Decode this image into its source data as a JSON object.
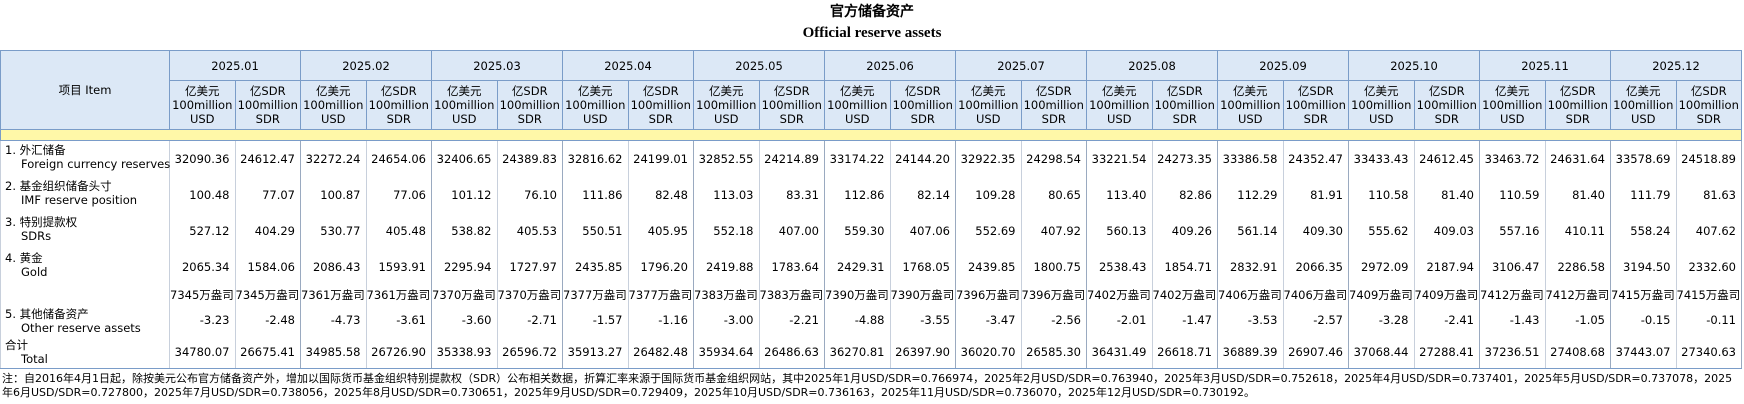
{
  "header": {
    "title_cn": "官方储备资产",
    "title_en": "Official reserve assets"
  },
  "table": {
    "item_header": "项目 Item",
    "months": [
      "2025.01",
      "2025.02",
      "2025.03",
      "2025.04",
      "2025.05",
      "2025.06",
      "2025.07",
      "2025.08",
      "2025.09",
      "2025.10",
      "2025.11",
      "2025.12"
    ],
    "units": [
      [
        "亿美元",
        "100million",
        "USD"
      ],
      [
        "亿SDR",
        "100million",
        "SDR"
      ]
    ],
    "rows": [
      {
        "label_cn": "1. 外汇储备",
        "label_en": "Foreign currency reserves",
        "values": [
          [
            "32090.36",
            "24612.47"
          ],
          [
            "32272.24",
            "24654.06"
          ],
          [
            "32406.65",
            "24389.83"
          ],
          [
            "32816.62",
            "24199.01"
          ],
          [
            "32852.55",
            "24214.89"
          ],
          [
            "33174.22",
            "24144.20"
          ],
          [
            "32922.35",
            "24298.54"
          ],
          [
            "33221.54",
            "24273.35"
          ],
          [
            "33386.58",
            "24352.47"
          ],
          [
            "33433.43",
            "24612.45"
          ],
          [
            "33463.72",
            "24631.64"
          ],
          [
            "33578.69",
            "24518.89"
          ]
        ]
      },
      {
        "label_cn": "2. 基金组织储备头寸",
        "label_en": "IMF reserve position",
        "values": [
          [
            "100.48",
            "77.07"
          ],
          [
            "100.87",
            "77.06"
          ],
          [
            "101.12",
            "76.10"
          ],
          [
            "111.86",
            "82.48"
          ],
          [
            "113.03",
            "83.31"
          ],
          [
            "112.86",
            "82.14"
          ],
          [
            "109.28",
            "80.65"
          ],
          [
            "113.40",
            "82.86"
          ],
          [
            "112.29",
            "81.91"
          ],
          [
            "110.58",
            "81.40"
          ],
          [
            "110.59",
            "81.40"
          ],
          [
            "111.79",
            "81.63"
          ]
        ]
      },
      {
        "label_cn": "3. 特别提款权",
        "label_en": "SDRs",
        "values": [
          [
            "527.12",
            "404.29"
          ],
          [
            "530.77",
            "405.48"
          ],
          [
            "538.82",
            "405.53"
          ],
          [
            "550.51",
            "405.95"
          ],
          [
            "552.18",
            "407.00"
          ],
          [
            "559.30",
            "407.06"
          ],
          [
            "552.69",
            "407.92"
          ],
          [
            "560.13",
            "409.26"
          ],
          [
            "561.14",
            "409.30"
          ],
          [
            "555.62",
            "409.03"
          ],
          [
            "557.16",
            "410.11"
          ],
          [
            "558.24",
            "407.62"
          ]
        ]
      },
      {
        "label_cn": "4. 黄金",
        "label_en": "Gold",
        "values": [
          [
            "2065.34",
            "1584.06"
          ],
          [
            "2086.43",
            "1593.91"
          ],
          [
            "2295.94",
            "1727.97"
          ],
          [
            "2435.85",
            "1796.20"
          ],
          [
            "2419.88",
            "1783.64"
          ],
          [
            "2429.31",
            "1768.05"
          ],
          [
            "2439.85",
            "1800.75"
          ],
          [
            "2538.43",
            "1854.71"
          ],
          [
            "2832.91",
            "2066.35"
          ],
          [
            "2972.09",
            "2187.94"
          ],
          [
            "3106.47",
            "2286.58"
          ],
          [
            "3194.50",
            "2332.60"
          ]
        ]
      },
      {
        "values": [
          [
            "7345万盎司",
            "7345万盎司"
          ],
          [
            "7361万盎司",
            "7361万盎司"
          ],
          [
            "7370万盎司",
            "7370万盎司"
          ],
          [
            "7377万盎司",
            "7377万盎司"
          ],
          [
            "7383万盎司",
            "7383万盎司"
          ],
          [
            "7390万盎司",
            "7390万盎司"
          ],
          [
            "7396万盎司",
            "7396万盎司"
          ],
          [
            "7402万盎司",
            "7402万盎司"
          ],
          [
            "7406万盎司",
            "7406万盎司"
          ],
          [
            "7409万盎司",
            "7409万盎司"
          ],
          [
            "7412万盎司",
            "7412万盎司"
          ],
          [
            "7415万盎司",
            "7415万盎司"
          ]
        ]
      },
      {
        "label_cn": "5. 其他储备资产",
        "label_en": "Other reserve assets",
        "values": [
          [
            "-3.23",
            "-2.48"
          ],
          [
            "-4.73",
            "-3.61"
          ],
          [
            "-3.60",
            "-2.71"
          ],
          [
            "-1.57",
            "-1.16"
          ],
          [
            "-3.00",
            "-2.21"
          ],
          [
            "-4.88",
            "-3.55"
          ],
          [
            "-3.47",
            "-2.56"
          ],
          [
            "-2.01",
            "-1.47"
          ],
          [
            "-3.53",
            "-2.57"
          ],
          [
            "-3.28",
            "-2.41"
          ],
          [
            "-1.43",
            "-1.05"
          ],
          [
            "-0.15",
            "-0.11"
          ]
        ]
      },
      {
        "label_cn": "合计",
        "label_en": "Total",
        "values": [
          [
            "34780.07",
            "26675.41"
          ],
          [
            "34985.58",
            "26726.90"
          ],
          [
            "35338.93",
            "26596.72"
          ],
          [
            "35913.27",
            "26482.48"
          ],
          [
            "35934.64",
            "26486.63"
          ],
          [
            "36270.81",
            "26397.90"
          ],
          [
            "36020.70",
            "26585.30"
          ],
          [
            "36431.49",
            "26618.71"
          ],
          [
            "36889.39",
            "26907.46"
          ],
          [
            "37068.44",
            "27288.41"
          ],
          [
            "37236.51",
            "27408.68"
          ],
          [
            "37443.07",
            "27340.63"
          ]
        ]
      }
    ]
  },
  "footnote": "注：自2016年4月1日起，除按美元公布官方储备资产外，增加以国际货币基金组织特别提款权（SDR）公布相关数据，折算汇率来源于国际货币基金组织网站，其中2025年1月USD/SDR=0.766974，2025年2月USD/SDR=0.763940，2025年3月USD/SDR=0.752618，2025年4月USD/SDR=0.737401，2025年5月USD/SDR=0.737078，2025年6月USD/SDR=0.727800，2025年7月USD/SDR=0.738056，2025年8月USD/SDR=0.730651，2025年9月USD/SDR=0.729409，2025年10月USD/SDR=0.736163，2025年11月USD/SDR=0.736070，2025年12月USD/SDR=0.730192。"
}
